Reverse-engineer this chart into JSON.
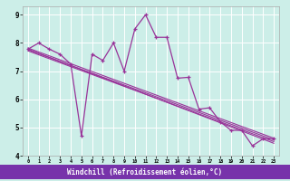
{
  "xlabel": "Windchill (Refroidissement éolien,°C)",
  "bg_color": "#cceee8",
  "line_color": "#993399",
  "grid_color": "#b0ddd8",
  "x_values": [
    0,
    1,
    2,
    3,
    4,
    5,
    6,
    7,
    8,
    9,
    10,
    11,
    12,
    13,
    14,
    15,
    16,
    17,
    18,
    19,
    20,
    21,
    22,
    23
  ],
  "y_main": [
    7.78,
    8.0,
    7.78,
    7.6,
    7.25,
    4.7,
    7.6,
    7.38,
    8.0,
    7.0,
    8.5,
    9.0,
    8.2,
    8.2,
    6.75,
    6.78,
    5.65,
    5.7,
    5.2,
    4.9,
    4.9,
    4.35,
    4.6,
    4.6
  ],
  "ylim": [
    4.0,
    9.3
  ],
  "xlim": [
    0,
    23
  ],
  "regression_lines": [
    [
      7.82,
      4.62
    ],
    [
      7.76,
      4.56
    ],
    [
      7.72,
      4.5
    ],
    [
      7.78,
      4.44
    ]
  ]
}
